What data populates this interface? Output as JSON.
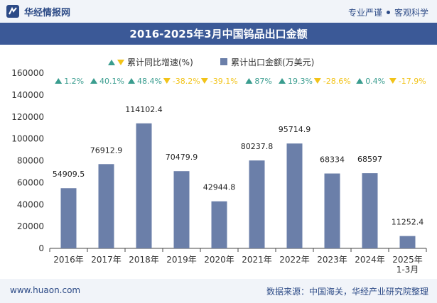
{
  "header": {
    "brand": "华经情报网",
    "tagline_left": "专业严谨",
    "tagline_right": "客观科学"
  },
  "chart_data": {
    "type": "bar",
    "title": "2016-2025年3月中国钨品出口金额",
    "categories": [
      "2016年",
      "2017年",
      "2018年",
      "2019年",
      "2020年",
      "2021年",
      "2022年",
      "2023年",
      "2024年",
      "2025年\n1-3月"
    ],
    "series": [
      {
        "name": "累计出口金额(万美元)",
        "values": [
          54909.5,
          76912.9,
          114102.4,
          70479.9,
          42944.8,
          80237.8,
          95714.9,
          68334,
          68597,
          11252.4
        ],
        "labels": [
          "54909.5",
          "76912.9",
          "114102.4",
          "70479.9",
          "42944.8",
          "80237.8",
          "95714.9",
          "68334",
          "68597",
          "11252.4"
        ],
        "color": "#6b7fa9"
      },
      {
        "name": "累计同比增速(%)",
        "values": [
          1.2,
          40.1,
          48.4,
          -38.2,
          -39.1,
          87,
          19.3,
          -28.6,
          0.4,
          -17.9
        ],
        "labels": [
          "1.2%",
          "40.1%",
          "48.4%",
          "-38.2%",
          "-39.1%",
          "87%",
          "19.3%",
          "-28.6%",
          "0.4%",
          "-17.9%"
        ],
        "up_color": "#3a9d8f",
        "down_color": "#f2c318"
      }
    ],
    "ylim": [
      0,
      160000
    ],
    "yticks": [
      0,
      20000,
      40000,
      60000,
      80000,
      100000,
      120000,
      140000,
      160000
    ],
    "legend": [
      "累计同比增速(%)",
      "累计出口金额(万美元)"
    ],
    "legend_position": "top-center",
    "xlabel": "",
    "ylabel": ""
  },
  "footer": {
    "website": "www.huaon.com",
    "source": "数据来源：中国海关，华经产业研究院整理"
  }
}
